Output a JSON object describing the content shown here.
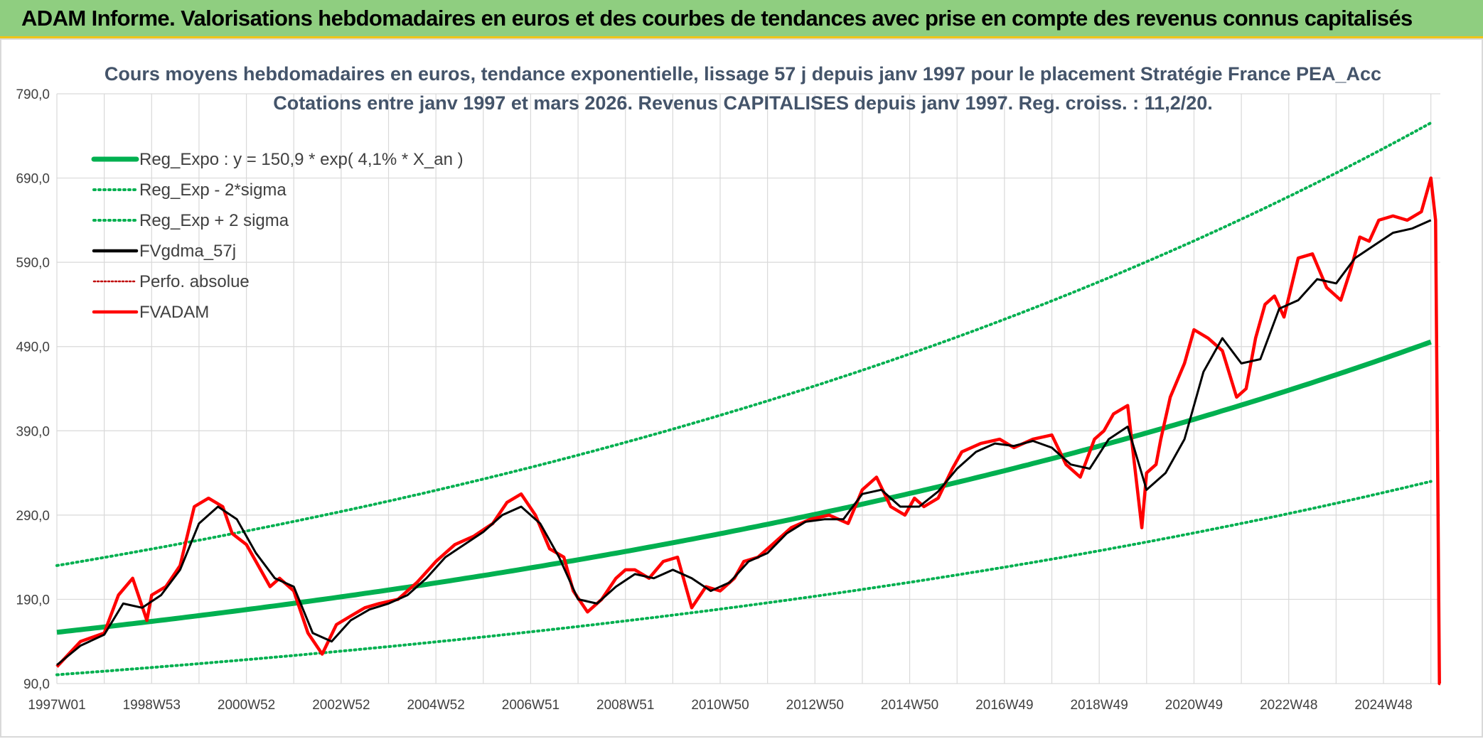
{
  "banner": {
    "title": "ADAM Informe. Valorisations hebdomadaires en euros et des courbes de tendances avec prise en compte des revenus connus capitalisés"
  },
  "colors": {
    "banner_bg": "#8fce80",
    "regression": "#00b050",
    "price": "#ff0000",
    "average": "#000000",
    "grid": "#d9d9d9"
  },
  "chart_data": {
    "type": "line",
    "title": "Cours moyens hebdomadaires en euros, tendance exponentielle, lissage 57 j depuis janv 1997 pour le placement Stratégie France PEA_Acc",
    "subtitle": "Cotations entre janv 1997 et mars 2026. Revenus CAPITALISES depuis janv 1997. Reg. croiss. : 11,2/20.",
    "xlabel": "",
    "ylabel": "",
    "x_range": [
      1997.0,
      2026.2
    ],
    "ylim": [
      90,
      790
    ],
    "y_ticks": [
      90,
      190,
      290,
      390,
      490,
      590,
      690,
      790
    ],
    "y_tick_labels": [
      "90,0",
      "190,0",
      "290,0",
      "390,0",
      "490,0",
      "590,0",
      "690,0",
      "790,0"
    ],
    "x_tick_labels": [
      {
        "label": "1997W01",
        "x": 1997.0
      },
      {
        "label": "1998W53",
        "x": 1999.0
      },
      {
        "label": "2000W52",
        "x": 2001.0
      },
      {
        "label": "2002W52",
        "x": 2003.0
      },
      {
        "label": "2004W52",
        "x": 2005.0
      },
      {
        "label": "2006W51",
        "x": 2007.0
      },
      {
        "label": "2008W51",
        "x": 2009.0
      },
      {
        "label": "2010W50",
        "x": 2011.0
      },
      {
        "label": "2012W50",
        "x": 2013.0
      },
      {
        "label": "2014W50",
        "x": 2015.0
      },
      {
        "label": "2016W49",
        "x": 2017.0
      },
      {
        "label": "2018W49",
        "x": 2019.0
      },
      {
        "label": "2020W49",
        "x": 2021.0
      },
      {
        "label": "2022W48",
        "x": 2023.0
      },
      {
        "label": "2024W48",
        "x": 2025.0
      }
    ],
    "grid": true,
    "legend_position": "top-left",
    "legend": [
      {
        "label": "Reg_Expo : y = 150,9 * exp( 4,1% *  X_an )",
        "color": "#00b050",
        "style": "solid-thick"
      },
      {
        "label": "Reg_Exp - 2*sigma",
        "color": "#00b050",
        "style": "dotted"
      },
      {
        "label": "Reg_Exp + 2 sigma",
        "color": "#00b050",
        "style": "dotted"
      },
      {
        "label": "FVgdma_57j",
        "color": "#000000",
        "style": "solid"
      },
      {
        "label": "Perfo. absolue",
        "color": "#c00000",
        "style": "dotted-thin"
      },
      {
        "label": "FVADAM",
        "color": "#ff0000",
        "style": "solid"
      }
    ],
    "regression": {
      "a": 150.9,
      "rate": 0.041,
      "lower_factor": 0.6659,
      "upper_factor": 1.5246
    },
    "series": [
      {
        "name": "FVADAM",
        "x": [
          1997.0,
          1997.5,
          1998.0,
          1998.3,
          1998.6,
          1998.9,
          1999.0,
          1999.3,
          1999.6,
          1999.9,
          2000.2,
          2000.5,
          2000.7,
          2001.0,
          2001.3,
          2001.5,
          2001.7,
          2002.0,
          2002.3,
          2002.6,
          2002.9,
          2003.2,
          2003.5,
          2003.8,
          2004.2,
          2004.6,
          2005.0,
          2005.4,
          2005.8,
          2006.2,
          2006.5,
          2006.8,
          2007.1,
          2007.4,
          2007.7,
          2007.9,
          2008.2,
          2008.5,
          2008.8,
          2009.0,
          2009.2,
          2009.5,
          2009.8,
          2010.1,
          2010.4,
          2010.7,
          2011.0,
          2011.3,
          2011.5,
          2011.8,
          2012.1,
          2012.5,
          2012.9,
          2013.3,
          2013.7,
          2014.0,
          2014.3,
          2014.6,
          2014.9,
          2015.1,
          2015.3,
          2015.6,
          2015.9,
          2016.1,
          2016.5,
          2016.9,
          2017.2,
          2017.6,
          2018.0,
          2018.3,
          2018.6,
          2018.9,
          2019.1,
          2019.3,
          2019.6,
          2019.9,
          2020.0,
          2020.1,
          2020.2,
          2020.3,
          2020.5,
          2020.8,
          2021.0,
          2021.3,
          2021.6,
          2021.9,
          2022.1,
          2022.3,
          2022.5,
          2022.7,
          2022.9,
          2023.2,
          2023.5,
          2023.8,
          2024.1,
          2024.3,
          2024.5,
          2024.7,
          2024.9,
          2025.2,
          2025.5,
          2025.8,
          2026.0,
          2026.1,
          2026.15,
          2026.18,
          2026.2
        ],
        "values": [
          110,
          140,
          150,
          195,
          215,
          165,
          195,
          205,
          230,
          300,
          310,
          300,
          268,
          255,
          225,
          205,
          215,
          200,
          150,
          125,
          160,
          170,
          180,
          185,
          190,
          210,
          235,
          255,
          265,
          280,
          305,
          315,
          290,
          250,
          240,
          200,
          175,
          190,
          215,
          225,
          225,
          215,
          235,
          240,
          180,
          205,
          200,
          215,
          235,
          240,
          255,
          275,
          285,
          290,
          280,
          320,
          335,
          300,
          290,
          310,
          300,
          310,
          345,
          365,
          375,
          380,
          370,
          380,
          385,
          350,
          335,
          380,
          390,
          410,
          420,
          275,
          340,
          345,
          350,
          380,
          430,
          470,
          510,
          500,
          485,
          430,
          440,
          500,
          540,
          550,
          525,
          595,
          600,
          560,
          545,
          580,
          620,
          615,
          640,
          645,
          640,
          650,
          690,
          640,
          300,
          90,
          90
        ]
      },
      {
        "name": "FVgdma_57j",
        "x": [
          1997.0,
          1997.5,
          1998.0,
          1998.4,
          1998.8,
          1999.2,
          1999.6,
          2000.0,
          2000.4,
          2000.8,
          2001.2,
          2001.6,
          2002.0,
          2002.4,
          2002.8,
          2003.2,
          2003.6,
          2004.0,
          2004.4,
          2004.8,
          2005.2,
          2005.6,
          2006.0,
          2006.4,
          2006.8,
          2007.2,
          2007.6,
          2008.0,
          2008.4,
          2008.8,
          2009.2,
          2009.6,
          2010.0,
          2010.4,
          2010.8,
          2011.2,
          2011.6,
          2012.0,
          2012.4,
          2012.8,
          2013.2,
          2013.6,
          2014.0,
          2014.4,
          2014.8,
          2015.2,
          2015.6,
          2016.0,
          2016.4,
          2016.8,
          2017.2,
          2017.6,
          2018.0,
          2018.4,
          2018.8,
          2019.2,
          2019.6,
          2020.0,
          2020.4,
          2020.8,
          2021.2,
          2021.6,
          2022.0,
          2022.4,
          2022.8,
          2023.2,
          2023.6,
          2024.0,
          2024.4,
          2024.8,
          2025.2,
          2025.6,
          2026.0
        ],
        "values": [
          112,
          135,
          148,
          185,
          180,
          195,
          225,
          280,
          300,
          285,
          245,
          215,
          205,
          150,
          140,
          165,
          178,
          185,
          195,
          215,
          240,
          255,
          270,
          290,
          300,
          280,
          240,
          190,
          185,
          205,
          220,
          215,
          225,
          215,
          200,
          210,
          235,
          245,
          268,
          282,
          285,
          285,
          315,
          320,
          300,
          300,
          318,
          345,
          365,
          375,
          372,
          378,
          370,
          350,
          345,
          380,
          395,
          320,
          340,
          380,
          460,
          500,
          470,
          475,
          535,
          545,
          570,
          565,
          595,
          610,
          625,
          630,
          640
        ]
      }
    ]
  }
}
